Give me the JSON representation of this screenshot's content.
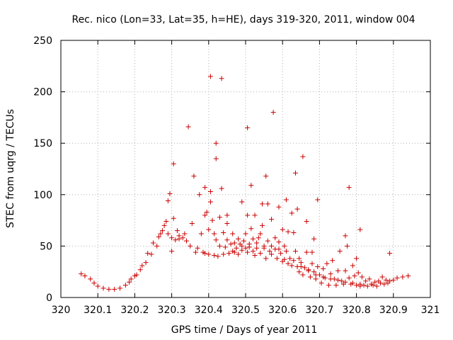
{
  "chart_data": {
    "type": "scatter",
    "title": "Rec. nico (Lon=33, Lat=35, h=HE), days 319-320, 2011, window 004",
    "xlabel": "GPS time / Days of year 2011",
    "ylabel": "STEC from uqrg / TECUs",
    "xlim": [
      320,
      321
    ],
    "ylim": [
      0,
      250
    ],
    "xticks": [
      "320",
      "320.1",
      "320.2",
      "320.3",
      "320.4",
      "320.5",
      "320.6",
      "320.7",
      "320.8",
      "320.9",
      "321"
    ],
    "yticks": [
      "0",
      "50",
      "100",
      "150",
      "200",
      "250"
    ],
    "grid": true,
    "marker": "+",
    "color": "#cc0000",
    "points": [
      [
        320.055,
        23
      ],
      [
        320.065,
        21
      ],
      [
        320.08,
        18
      ],
      [
        320.09,
        14
      ],
      [
        320.1,
        11
      ],
      [
        320.115,
        9
      ],
      [
        320.13,
        8
      ],
      [
        320.145,
        8
      ],
      [
        320.16,
        9
      ],
      [
        320.175,
        12
      ],
      [
        320.185,
        15
      ],
      [
        320.19,
        18
      ],
      [
        320.2,
        21
      ],
      [
        320.205,
        22
      ],
      [
        320.215,
        27
      ],
      [
        320.22,
        31
      ],
      [
        320.23,
        34
      ],
      [
        320.235,
        43
      ],
      [
        320.245,
        42
      ],
      [
        320.25,
        53
      ],
      [
        320.26,
        50
      ],
      [
        320.265,
        59
      ],
      [
        320.27,
        62
      ],
      [
        320.275,
        65
      ],
      [
        320.28,
        70
      ],
      [
        320.285,
        74
      ],
      [
        320.29,
        62
      ],
      [
        320.29,
        94
      ],
      [
        320.295,
        101
      ],
      [
        320.3,
        58
      ],
      [
        320.305,
        77
      ],
      [
        320.305,
        130
      ],
      [
        320.31,
        56
      ],
      [
        320.315,
        65
      ],
      [
        320.32,
        60
      ],
      [
        320.33,
        58
      ],
      [
        320.335,
        62
      ],
      [
        320.34,
        55
      ],
      [
        320.345,
        166
      ],
      [
        320.35,
        50
      ],
      [
        320.355,
        72
      ],
      [
        320.36,
        118
      ],
      [
        320.365,
        44
      ],
      [
        320.37,
        48
      ],
      [
        320.375,
        100
      ],
      [
        320.38,
        62
      ],
      [
        320.385,
        44
      ],
      [
        320.39,
        43
      ],
      [
        320.39,
        80
      ],
      [
        320.39,
        107
      ],
      [
        320.395,
        83
      ],
      [
        320.4,
        42
      ],
      [
        320.4,
        66
      ],
      [
        320.405,
        93
      ],
      [
        320.405,
        103
      ],
      [
        320.405,
        215
      ],
      [
        320.41,
        75
      ],
      [
        320.415,
        62
      ],
      [
        320.415,
        41
      ],
      [
        320.42,
        56
      ],
      [
        320.42,
        135
      ],
      [
        320.42,
        150
      ],
      [
        320.425,
        40
      ],
      [
        320.43,
        50
      ],
      [
        320.43,
        78
      ],
      [
        320.435,
        106
      ],
      [
        320.435,
        213
      ],
      [
        320.44,
        42
      ],
      [
        320.44,
        63
      ],
      [
        320.445,
        49
      ],
      [
        320.45,
        56
      ],
      [
        320.45,
        72
      ],
      [
        320.45,
        80
      ],
      [
        320.455,
        43
      ],
      [
        320.46,
        52
      ],
      [
        320.465,
        62
      ],
      [
        320.465,
        45
      ],
      [
        320.47,
        53
      ],
      [
        320.475,
        48
      ],
      [
        320.48,
        57
      ],
      [
        320.48,
        42
      ],
      [
        320.485,
        52
      ],
      [
        320.49,
        93
      ],
      [
        320.49,
        46
      ],
      [
        320.495,
        55
      ],
      [
        320.5,
        48
      ],
      [
        320.5,
        62
      ],
      [
        320.505,
        44
      ],
      [
        320.505,
        80
      ],
      [
        320.505,
        165
      ],
      [
        320.51,
        52
      ],
      [
        320.515,
        67
      ],
      [
        320.515,
        109
      ],
      [
        320.52,
        57
      ],
      [
        320.52,
        45
      ],
      [
        320.525,
        80
      ],
      [
        320.525,
        41
      ],
      [
        320.53,
        48
      ],
      [
        320.535,
        58
      ],
      [
        320.54,
        62
      ],
      [
        320.54,
        43
      ],
      [
        320.545,
        70
      ],
      [
        320.545,
        91
      ],
      [
        320.55,
        50
      ],
      [
        320.555,
        38
      ],
      [
        320.555,
        118
      ],
      [
        320.56,
        91
      ],
      [
        320.56,
        55
      ],
      [
        320.565,
        45
      ],
      [
        320.57,
        42
      ],
      [
        320.57,
        76
      ],
      [
        320.575,
        180
      ],
      [
        320.58,
        58
      ],
      [
        320.58,
        47
      ],
      [
        320.585,
        38
      ],
      [
        320.59,
        88
      ],
      [
        320.59,
        54
      ],
      [
        320.595,
        43
      ],
      [
        320.6,
        35
      ],
      [
        320.6,
        66
      ],
      [
        320.605,
        50
      ],
      [
        320.605,
        37
      ],
      [
        320.61,
        95
      ],
      [
        320.615,
        33
      ],
      [
        320.615,
        64
      ],
      [
        320.62,
        38
      ],
      [
        320.625,
        31
      ],
      [
        320.625,
        82
      ],
      [
        320.63,
        63
      ],
      [
        320.635,
        45
      ],
      [
        320.635,
        121
      ],
      [
        320.64,
        86
      ],
      [
        320.64,
        30
      ],
      [
        320.645,
        38
      ],
      [
        320.645,
        25
      ],
      [
        320.65,
        34
      ],
      [
        320.655,
        137
      ],
      [
        320.655,
        22
      ],
      [
        320.66,
        29
      ],
      [
        320.665,
        44
      ],
      [
        320.665,
        74
      ],
      [
        320.67,
        27
      ],
      [
        320.675,
        20
      ],
      [
        320.68,
        33
      ],
      [
        320.68,
        44
      ],
      [
        320.685,
        57
      ],
      [
        320.685,
        25
      ],
      [
        320.69,
        18
      ],
      [
        320.695,
        95
      ],
      [
        320.695,
        30
      ],
      [
        320.7,
        22
      ],
      [
        320.705,
        14
      ],
      [
        320.71,
        28
      ],
      [
        320.715,
        19
      ],
      [
        320.72,
        33
      ],
      [
        320.725,
        12
      ],
      [
        320.73,
        23
      ],
      [
        320.735,
        36
      ],
      [
        320.74,
        18
      ],
      [
        320.745,
        12
      ],
      [
        320.75,
        26
      ],
      [
        320.755,
        45
      ],
      [
        320.76,
        16
      ],
      [
        320.765,
        13
      ],
      [
        320.77,
        60
      ],
      [
        320.77,
        26
      ],
      [
        320.775,
        50
      ],
      [
        320.78,
        107
      ],
      [
        320.78,
        19
      ],
      [
        320.785,
        13
      ],
      [
        320.79,
        31
      ],
      [
        320.795,
        21
      ],
      [
        320.8,
        38
      ],
      [
        320.8,
        12
      ],
      [
        320.805,
        24
      ],
      [
        320.81,
        66
      ],
      [
        320.81,
        11
      ],
      [
        320.815,
        20
      ],
      [
        320.82,
        12
      ],
      [
        320.825,
        16
      ],
      [
        320.83,
        11
      ],
      [
        320.835,
        18
      ],
      [
        320.84,
        13
      ],
      [
        320.845,
        12
      ],
      [
        320.85,
        15
      ],
      [
        320.855,
        11
      ],
      [
        320.86,
        16
      ],
      [
        320.865,
        14
      ],
      [
        320.87,
        20
      ],
      [
        320.875,
        13
      ],
      [
        320.88,
        17
      ],
      [
        320.885,
        14
      ],
      [
        320.89,
        43
      ],
      [
        320.89,
        16
      ],
      [
        320.9,
        17
      ],
      [
        320.91,
        19
      ],
      [
        320.925,
        20
      ],
      [
        320.94,
        21
      ],
      [
        320.3,
        45
      ],
      [
        320.32,
        57
      ],
      [
        320.47,
        44
      ],
      [
        320.49,
        50
      ],
      [
        320.51,
        49
      ],
      [
        320.53,
        53
      ],
      [
        320.55,
        48
      ],
      [
        320.57,
        50
      ],
      [
        320.59,
        47
      ],
      [
        320.61,
        45
      ],
      [
        320.63,
        36
      ],
      [
        320.65,
        30
      ],
      [
        320.67,
        26
      ],
      [
        320.69,
        22
      ],
      [
        320.71,
        20
      ],
      [
        320.73,
        18
      ],
      [
        320.75,
        17
      ],
      [
        320.77,
        15
      ],
      [
        320.79,
        14
      ],
      [
        320.81,
        13
      ]
    ]
  }
}
